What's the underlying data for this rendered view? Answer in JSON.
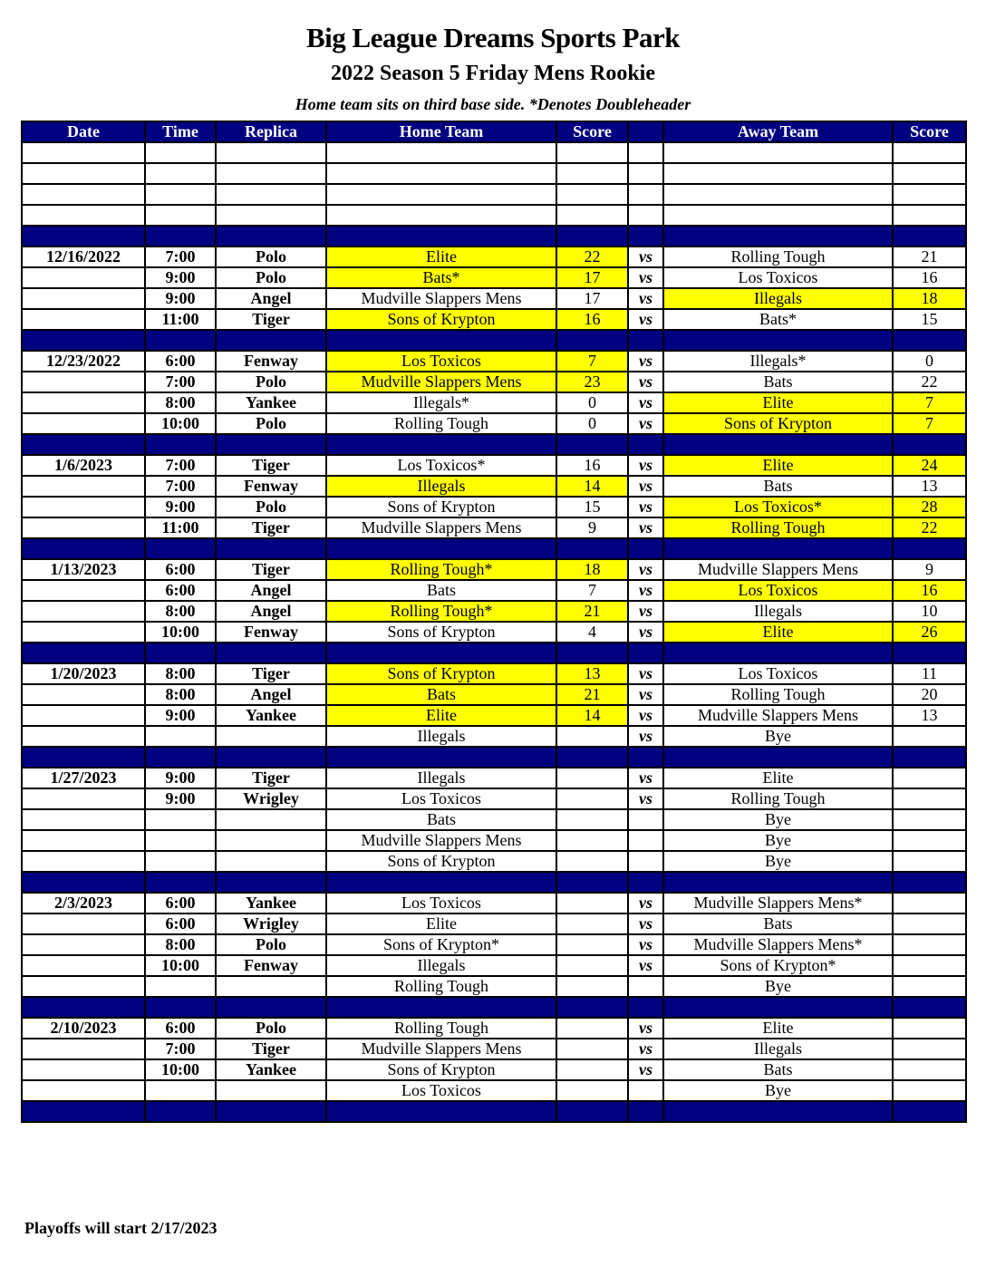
{
  "title": "Big League Dreams Sports Park",
  "subtitle": "2022 Season 5 Friday Mens Rookie",
  "note": "Home team sits on third base side.  *Denotes Doubleheader",
  "headers": [
    "Date",
    "Time",
    "Replica",
    "Home Team",
    "Score",
    "",
    "Away Team",
    "Score"
  ],
  "vs_label": "vs",
  "highlight_color": "#ffff00",
  "header_color": "#000080",
  "weeks": [
    {
      "date": "12/16/2022",
      "games": [
        {
          "time": "7:00",
          "replica": "Polo",
          "home": "Elite",
          "home_score": "22",
          "away": "Rolling Tough",
          "away_score": "21",
          "winner": "home"
        },
        {
          "time": "9:00",
          "replica": "Polo",
          "home": "Bats*",
          "home_score": "17",
          "away": "Los Toxicos",
          "away_score": "16",
          "winner": "home"
        },
        {
          "time": "9:00",
          "replica": "Angel",
          "home": "Mudville Slappers Mens",
          "home_score": "17",
          "away": "Illegals",
          "away_score": "18",
          "winner": "away"
        },
        {
          "time": "11:00",
          "replica": "Tiger",
          "home": "Sons of Krypton",
          "home_score": "16",
          "away": "Bats*",
          "away_score": "15",
          "winner": "home"
        }
      ]
    },
    {
      "date": "12/23/2022",
      "games": [
        {
          "time": "6:00",
          "replica": "Fenway",
          "home": "Los Toxicos",
          "home_score": "7",
          "away": "Illegals*",
          "away_score": "0",
          "winner": "home"
        },
        {
          "time": "7:00",
          "replica": "Polo",
          "home": "Mudville Slappers Mens",
          "home_score": "23",
          "away": "Bats",
          "away_score": "22",
          "winner": "home"
        },
        {
          "time": "8:00",
          "replica": "Yankee",
          "home": "Illegals*",
          "home_score": "0",
          "away": "Elite",
          "away_score": "7",
          "winner": "away"
        },
        {
          "time": "10:00",
          "replica": "Polo",
          "home": "Rolling Tough",
          "home_score": "0",
          "away": "Sons of Krypton",
          "away_score": "7",
          "winner": "away"
        }
      ]
    },
    {
      "date": "1/6/2023",
      "games": [
        {
          "time": "7:00",
          "replica": "Tiger",
          "home": "Los Toxicos*",
          "home_score": "16",
          "away": "Elite",
          "away_score": "24",
          "winner": "away"
        },
        {
          "time": "7:00",
          "replica": "Fenway",
          "home": "Illegals",
          "home_score": "14",
          "away": "Bats",
          "away_score": "13",
          "winner": "home"
        },
        {
          "time": "9:00",
          "replica": "Polo",
          "home": "Sons of Krypton",
          "home_score": "15",
          "away": "Los Toxicos*",
          "away_score": "28",
          "winner": "away"
        },
        {
          "time": "11:00",
          "replica": "Tiger",
          "home": "Mudville Slappers Mens",
          "home_score": "9",
          "away": "Rolling Tough",
          "away_score": "22",
          "winner": "away"
        }
      ]
    },
    {
      "date": "1/13/2023",
      "games": [
        {
          "time": "6:00",
          "replica": "Tiger",
          "home": "Rolling Tough*",
          "home_score": "18",
          "away": "Mudville Slappers Mens",
          "away_score": "9",
          "winner": "home"
        },
        {
          "time": "6:00",
          "replica": "Angel",
          "home": "Bats",
          "home_score": "7",
          "away": "Los Toxicos",
          "away_score": "16",
          "winner": "away"
        },
        {
          "time": "8:00",
          "replica": "Angel",
          "home": "Rolling Tough*",
          "home_score": "21",
          "away": "Illegals",
          "away_score": "10",
          "winner": "home"
        },
        {
          "time": "10:00",
          "replica": "Fenway",
          "home": "Sons of Krypton",
          "home_score": "4",
          "away": "Elite",
          "away_score": "26",
          "winner": "away"
        }
      ]
    },
    {
      "date": "1/20/2023",
      "games": [
        {
          "time": "8:00",
          "replica": "Tiger",
          "home": "Sons of Krypton",
          "home_score": "13",
          "away": "Los Toxicos",
          "away_score": "11",
          "winner": "home"
        },
        {
          "time": "8:00",
          "replica": "Angel",
          "home": "Bats",
          "home_score": "21",
          "away": "Rolling Tough",
          "away_score": "20",
          "winner": "home"
        },
        {
          "time": "9:00",
          "replica": "Yankee",
          "home": "Elite",
          "home_score": "14",
          "away": "Mudville Slappers Mens",
          "away_score": "13",
          "winner": "home"
        },
        {
          "time": "",
          "replica": "",
          "home": "Illegals",
          "home_score": "",
          "away": "Bye",
          "away_score": "",
          "winner": "",
          "vs": true
        }
      ]
    },
    {
      "date": "1/27/2023",
      "games": [
        {
          "time": "9:00",
          "replica": "Tiger",
          "home": "Illegals",
          "home_score": "",
          "away": "Elite",
          "away_score": "",
          "winner": ""
        },
        {
          "time": "9:00",
          "replica": "Wrigley",
          "home": "Los Toxicos",
          "home_score": "",
          "away": "Rolling Tough",
          "away_score": "",
          "winner": ""
        },
        {
          "time": "",
          "replica": "",
          "home": "Bats",
          "home_score": "",
          "away": "Bye",
          "away_score": "",
          "winner": "",
          "vs": false
        },
        {
          "time": "",
          "replica": "",
          "home": "Mudville Slappers Mens",
          "home_score": "",
          "away": "Bye",
          "away_score": "",
          "winner": "",
          "vs": false
        },
        {
          "time": "",
          "replica": "",
          "home": "Sons of Krypton",
          "home_score": "",
          "away": "Bye",
          "away_score": "",
          "winner": "",
          "vs": false
        }
      ]
    },
    {
      "date": "2/3/2023",
      "games": [
        {
          "time": "6:00",
          "replica": "Yankee",
          "home": "Los Toxicos",
          "home_score": "",
          "away": "Mudville Slappers Mens*",
          "away_score": "",
          "winner": ""
        },
        {
          "time": "6:00",
          "replica": "Wrigley",
          "home": "Elite",
          "home_score": "",
          "away": "Bats",
          "away_score": "",
          "winner": ""
        },
        {
          "time": "8:00",
          "replica": "Polo",
          "home": "Sons of Krypton*",
          "home_score": "",
          "away": "Mudville Slappers Mens*",
          "away_score": "",
          "winner": ""
        },
        {
          "time": "10:00",
          "replica": "Fenway",
          "home": "Illegals",
          "home_score": "",
          "away": "Sons of Krypton*",
          "away_score": "",
          "winner": ""
        },
        {
          "time": "",
          "replica": "",
          "home": "Rolling Tough",
          "home_score": "",
          "away": "Bye",
          "away_score": "",
          "winner": "",
          "vs": false
        }
      ]
    },
    {
      "date": "2/10/2023",
      "games": [
        {
          "time": "6:00",
          "replica": "Polo",
          "home": "Rolling Tough",
          "home_score": "",
          "away": "Elite",
          "away_score": "",
          "winner": ""
        },
        {
          "time": "7:00",
          "replica": "Tiger",
          "home": "Mudville Slappers Mens",
          "home_score": "",
          "away": "Illegals",
          "away_score": "",
          "winner": ""
        },
        {
          "time": "10:00",
          "replica": "Yankee",
          "home": "Sons of Krypton",
          "home_score": "",
          "away": "Bats",
          "away_score": "",
          "winner": ""
        },
        {
          "time": "",
          "replica": "",
          "home": "Los Toxicos",
          "home_score": "",
          "away": "Bye",
          "away_score": "",
          "winner": "",
          "vs": false
        }
      ]
    }
  ],
  "footer": "Playoffs will start 2/17/2023"
}
